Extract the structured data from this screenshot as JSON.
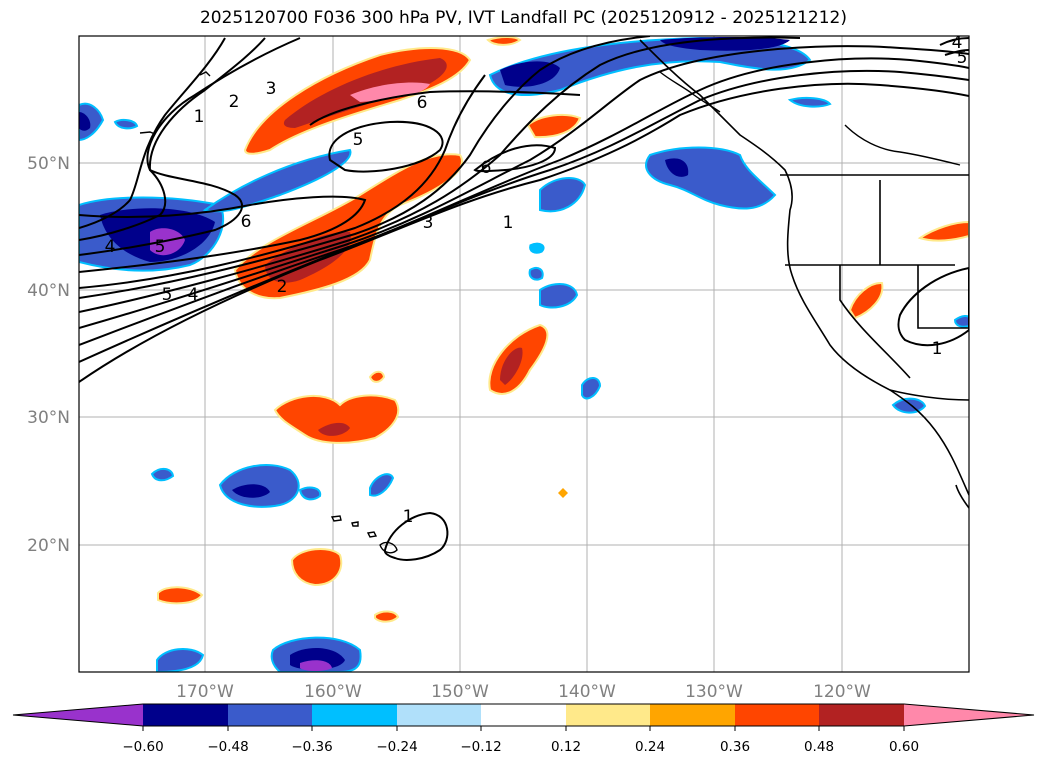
{
  "title": "2025120700 F036 300 hPa PV, IVT Landfall PC (2025120912 - 2025121212)",
  "map": {
    "lat_labels": [
      "50°N",
      "40°N",
      "30°N",
      "20°N"
    ],
    "lon_labels": [
      "170°W",
      "160°W",
      "150°W",
      "140°W",
      "130°W",
      "120°W"
    ],
    "contour_labels": [
      "1",
      "2",
      "3",
      "6",
      "5",
      "6",
      "3",
      "1",
      "4",
      "5",
      "6",
      "5",
      "4",
      "2",
      "1",
      "1",
      "5",
      "4"
    ]
  },
  "colorbar": {
    "ticks": [
      "−0.60",
      "−0.48",
      "−0.36",
      "−0.24",
      "−0.12",
      "0.12",
      "0.24",
      "0.36",
      "0.48",
      "0.60"
    ],
    "colors": {
      "under": "#9932cc",
      "c1": "#00008b",
      "c2": "#3a5bcb",
      "c3": "#00bfff",
      "c4": "#b0e0fa",
      "c5": "#ffffff",
      "c6": "#ffe98a",
      "c7": "#ffa500",
      "c8": "#ff4500",
      "c9": "#b22222",
      "over": "#ff88aa"
    }
  }
}
